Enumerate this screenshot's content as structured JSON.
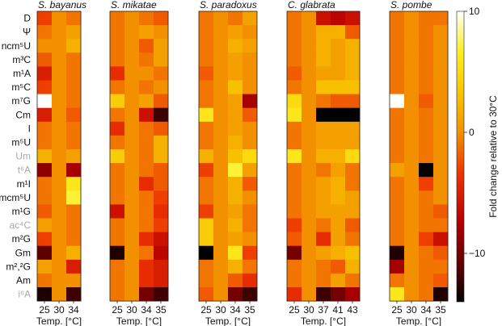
{
  "chart_data": {
    "type": "heatmap",
    "x_title": "Temp. [°C]",
    "rows": [
      "D",
      "Ψ",
      "ncm⁵U",
      "m³C",
      "m¹A",
      "m⁵C",
      "m⁷G",
      "Cm",
      "I",
      "m⁵U",
      "Um",
      "t⁶A",
      "m¹I",
      "mcm⁵U",
      "m¹G",
      "ac⁴C",
      "m²G",
      "Gm",
      "m²,²G",
      "Am",
      "i⁶A"
    ],
    "muted_rows": [
      "Um",
      "t⁶A",
      "ac⁴C",
      "i⁶A"
    ],
    "colorbar": {
      "label": "Fold change relative to 30°C",
      "range": [
        -14,
        10
      ],
      "ticks": [
        10,
        0,
        -10
      ]
    },
    "panels": [
      {
        "title": "S. bayanus",
        "columns": [
          "25",
          "30",
          "34"
        ],
        "values": [
          [
            -3,
            0,
            -1
          ],
          [
            -1,
            0,
            1
          ],
          [
            0,
            0,
            2
          ],
          [
            -2,
            0,
            -1
          ],
          [
            -5,
            0,
            -1
          ],
          [
            -3,
            0,
            -1
          ],
          [
            10,
            0,
            -1
          ],
          [
            -5,
            0,
            -2
          ],
          [
            -1,
            0,
            -1
          ],
          [
            -1,
            0,
            -1
          ],
          [
            2,
            0,
            1
          ],
          [
            -9,
            0,
            -8
          ],
          [
            -1,
            0,
            6
          ],
          [
            -1,
            0,
            7
          ],
          [
            -2,
            0,
            -1
          ],
          [
            1,
            0,
            -1
          ],
          [
            -3,
            0,
            -1
          ],
          [
            -11,
            0,
            2
          ],
          [
            1,
            0,
            -5
          ],
          [
            -1,
            0,
            0
          ],
          [
            -13,
            0,
            -12
          ]
        ]
      },
      {
        "title": "S. mikatae",
        "columns": [
          "25",
          "30",
          "34",
          "35"
        ],
        "values": [
          [
            -1,
            0,
            -1,
            -2
          ],
          [
            -1,
            0,
            1,
            0
          ],
          [
            -1,
            0,
            -2,
            1
          ],
          [
            -1,
            0,
            -1,
            1
          ],
          [
            -4,
            0,
            0,
            -1
          ],
          [
            -1,
            0,
            -1,
            0
          ],
          [
            4,
            0,
            1,
            -2
          ],
          [
            -1,
            0,
            -6,
            -12
          ],
          [
            -4,
            0,
            -1,
            -2
          ],
          [
            -1,
            0,
            -1,
            2
          ],
          [
            4,
            0,
            -1,
            2
          ],
          [
            -1,
            0,
            -1,
            -2
          ],
          [
            -1,
            0,
            -4,
            -2
          ],
          [
            -1,
            0,
            -1,
            -3
          ],
          [
            -6,
            0,
            -1,
            -4
          ],
          [
            -1,
            0,
            -1,
            -3
          ],
          [
            -1,
            0,
            -4,
            -6
          ],
          [
            -13,
            0,
            -1,
            -7
          ],
          [
            -1,
            0,
            -4,
            -5
          ],
          [
            -1,
            0,
            -4,
            -5
          ],
          [
            -1,
            0,
            -10,
            -12
          ]
        ]
      },
      {
        "title": "S. paradoxus",
        "columns": [
          "25",
          "30",
          "34",
          "35"
        ],
        "values": [
          [
            -1,
            0,
            -1,
            1
          ],
          [
            -1,
            0,
            1,
            0
          ],
          [
            -1,
            0,
            2,
            1
          ],
          [
            -1,
            0,
            1,
            0
          ],
          [
            -2,
            0,
            1,
            0
          ],
          [
            -1,
            0,
            3,
            0
          ],
          [
            -1,
            0,
            1,
            -8
          ],
          [
            6,
            0,
            1,
            -2
          ],
          [
            -1,
            0,
            1,
            0
          ],
          [
            -1,
            0,
            2,
            0
          ],
          [
            2,
            0,
            3,
            5
          ],
          [
            -3,
            0,
            7,
            1
          ],
          [
            -1,
            0,
            2,
            -2
          ],
          [
            -1,
            0,
            2,
            0
          ],
          [
            -3,
            0,
            1,
            -1
          ],
          [
            4,
            0,
            2,
            -1
          ],
          [
            4,
            0,
            1,
            0
          ],
          [
            -14,
            0,
            6,
            -3
          ],
          [
            -1,
            0,
            2,
            -1
          ],
          [
            -1,
            0,
            -2,
            -4
          ],
          [
            -2,
            0,
            -10,
            -12
          ]
        ]
      },
      {
        "title": "C. glabrata",
        "columns": [
          "25",
          "30",
          "37",
          "41",
          "43"
        ],
        "values": [
          [
            -1,
            0,
            -6,
            -7,
            -6
          ],
          [
            -1,
            0,
            2,
            2,
            -2
          ],
          [
            -1,
            0,
            2,
            1,
            2
          ],
          [
            -1,
            0,
            2,
            1,
            2
          ],
          [
            -2,
            0,
            1,
            1,
            2
          ],
          [
            -1,
            0,
            3,
            3,
            3
          ],
          [
            5,
            0,
            -1,
            -2,
            -2
          ],
          [
            6,
            0,
            -14,
            -14,
            -14
          ],
          [
            -1,
            0,
            1,
            1,
            1
          ],
          [
            -1,
            0,
            1,
            1,
            1
          ],
          [
            6,
            0,
            2,
            2,
            5
          ],
          [
            -1,
            0,
            -1,
            1,
            -1
          ],
          [
            -1,
            0,
            1,
            2,
            -1
          ],
          [
            -1,
            0,
            1,
            2,
            1
          ],
          [
            -1,
            0,
            1,
            1,
            1
          ],
          [
            -3,
            0,
            -1,
            1,
            -2
          ],
          [
            -2,
            0,
            -4,
            1,
            -1
          ],
          [
            -10,
            0,
            1,
            2,
            3
          ],
          [
            -1,
            0,
            -1,
            -2,
            2
          ],
          [
            -1,
            0,
            -1,
            1,
            -1
          ],
          [
            -4,
            0,
            -12,
            -10,
            -8
          ]
        ]
      },
      {
        "title": "S. pombe",
        "columns": [
          "25",
          "30",
          "34",
          "35"
        ],
        "values": [
          [
            -1,
            0,
            -1,
            -1
          ],
          [
            -1,
            0,
            -1,
            0
          ],
          [
            -1,
            0,
            -1,
            0
          ],
          [
            -1,
            0,
            -1,
            0
          ],
          [
            -1,
            0,
            -1,
            0
          ],
          [
            -1,
            0,
            -1,
            0
          ],
          [
            10,
            0,
            -2,
            0
          ],
          [
            -1,
            0,
            -1,
            0
          ],
          [
            -1,
            0,
            -1,
            0
          ],
          [
            -1,
            0,
            -1,
            0
          ],
          [
            -1,
            0,
            -1,
            0
          ],
          [
            1,
            0,
            -14,
            0
          ],
          [
            -1,
            0,
            -3,
            0
          ],
          [
            -1,
            0,
            -1,
            0
          ],
          [
            -1,
            0,
            -1,
            -2
          ],
          [
            -1,
            0,
            -1,
            -1
          ],
          [
            -1,
            0,
            -3,
            -6
          ],
          [
            -13,
            0,
            -1,
            -2
          ],
          [
            -8,
            0,
            -1,
            -1
          ],
          [
            -1,
            0,
            -1,
            -2
          ],
          [
            6,
            0,
            -1,
            -13
          ]
        ]
      }
    ]
  }
}
